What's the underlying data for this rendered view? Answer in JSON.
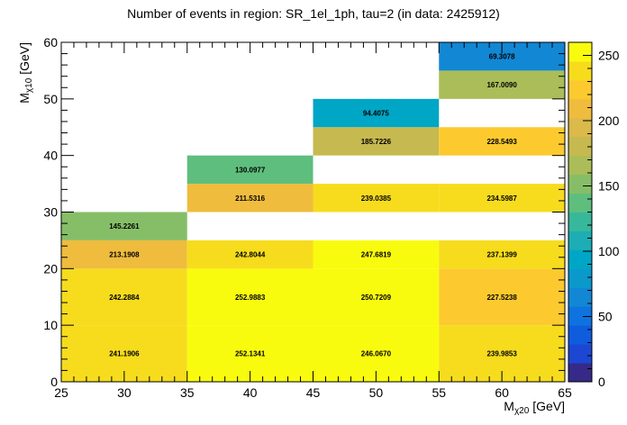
{
  "chart_data": {
    "type": "heatmap",
    "title": "Number of events in region: SR_1el_1ph, tau=2 (in data: 2425912)",
    "xlabel": {
      "main": "M",
      "sub": "χ20",
      "unit": "[GeV]"
    },
    "ylabel": {
      "main": "M",
      "sub": "χ10",
      "unit": "[GeV]"
    },
    "xlim": [
      25,
      65
    ],
    "ylim": [
      0,
      60
    ],
    "x_ticks": [
      25,
      30,
      35,
      40,
      45,
      50,
      55,
      60,
      65
    ],
    "y_ticks": [
      0,
      10,
      20,
      30,
      40,
      50,
      60
    ],
    "z_range": [
      0,
      260
    ],
    "z_ticks": [
      0,
      50,
      100,
      150,
      200,
      250
    ],
    "colormap": [
      "#352a87",
      "#1c47d3",
      "#0f5cdd",
      "#0e72df",
      "#1287d4",
      "#0b99cc",
      "#00a6c5",
      "#1caeb4",
      "#37b89a",
      "#5ebe7e",
      "#86be67",
      "#aabd58",
      "#c6b94f",
      "#dbb94a",
      "#efbc3e",
      "#fcca2e",
      "#f6dc1d",
      "#f9fb0e"
    ],
    "cells": [
      {
        "x": [
          25,
          35
        ],
        "y": [
          0,
          10
        ],
        "z": 241.1906,
        "label": "241.1906"
      },
      {
        "x": [
          35,
          45
        ],
        "y": [
          0,
          10
        ],
        "z": 252.1341,
        "label": "252.1341"
      },
      {
        "x": [
          45,
          55
        ],
        "y": [
          0,
          10
        ],
        "z": 246.067,
        "label": "246.0670"
      },
      {
        "x": [
          55,
          65
        ],
        "y": [
          0,
          10
        ],
        "z": 239.9853,
        "label": "239.9853"
      },
      {
        "x": [
          25,
          35
        ],
        "y": [
          10,
          20
        ],
        "z": 242.2884,
        "label": "242.2884"
      },
      {
        "x": [
          35,
          45
        ],
        "y": [
          10,
          20
        ],
        "z": 252.9883,
        "label": "252.9883"
      },
      {
        "x": [
          45,
          55
        ],
        "y": [
          10,
          20
        ],
        "z": 250.7209,
        "label": "250.7209"
      },
      {
        "x": [
          55,
          65
        ],
        "y": [
          10,
          20
        ],
        "z": 227.5238,
        "label": "227.5238"
      },
      {
        "x": [
          25,
          35
        ],
        "y": [
          20,
          25
        ],
        "z": 213.1908,
        "label": "213.1908"
      },
      {
        "x": [
          35,
          45
        ],
        "y": [
          20,
          25
        ],
        "z": 242.8044,
        "label": "242.8044"
      },
      {
        "x": [
          45,
          55
        ],
        "y": [
          20,
          25
        ],
        "z": 247.6819,
        "label": "247.6819"
      },
      {
        "x": [
          55,
          65
        ],
        "y": [
          20,
          25
        ],
        "z": 237.1399,
        "label": "237.1399"
      },
      {
        "x": [
          25,
          35
        ],
        "y": [
          25,
          30
        ],
        "z": 145.2261,
        "label": "145.2261"
      },
      {
        "x": [
          35,
          45
        ],
        "y": [
          30,
          35
        ],
        "z": 211.5316,
        "label": "211.5316"
      },
      {
        "x": [
          45,
          55
        ],
        "y": [
          30,
          35
        ],
        "z": 239.0385,
        "label": "239.0385"
      },
      {
        "x": [
          55,
          65
        ],
        "y": [
          30,
          35
        ],
        "z": 234.5987,
        "label": "234.5987"
      },
      {
        "x": [
          35,
          45
        ],
        "y": [
          35,
          40
        ],
        "z": 130.0977,
        "label": "130.0977"
      },
      {
        "x": [
          45,
          55
        ],
        "y": [
          40,
          45
        ],
        "z": 185.7226,
        "label": "185.7226"
      },
      {
        "x": [
          55,
          65
        ],
        "y": [
          40,
          45
        ],
        "z": 228.5493,
        "label": "228.5493"
      },
      {
        "x": [
          45,
          55
        ],
        "y": [
          45,
          50
        ],
        "z": 94.4075,
        "label": "94.4075"
      },
      {
        "x": [
          55,
          65
        ],
        "y": [
          50,
          55
        ],
        "z": 167.009,
        "label": "167.0090"
      },
      {
        "x": [
          55,
          65
        ],
        "y": [
          55,
          60
        ],
        "z": 69.3078,
        "label": "69.3078"
      }
    ]
  }
}
